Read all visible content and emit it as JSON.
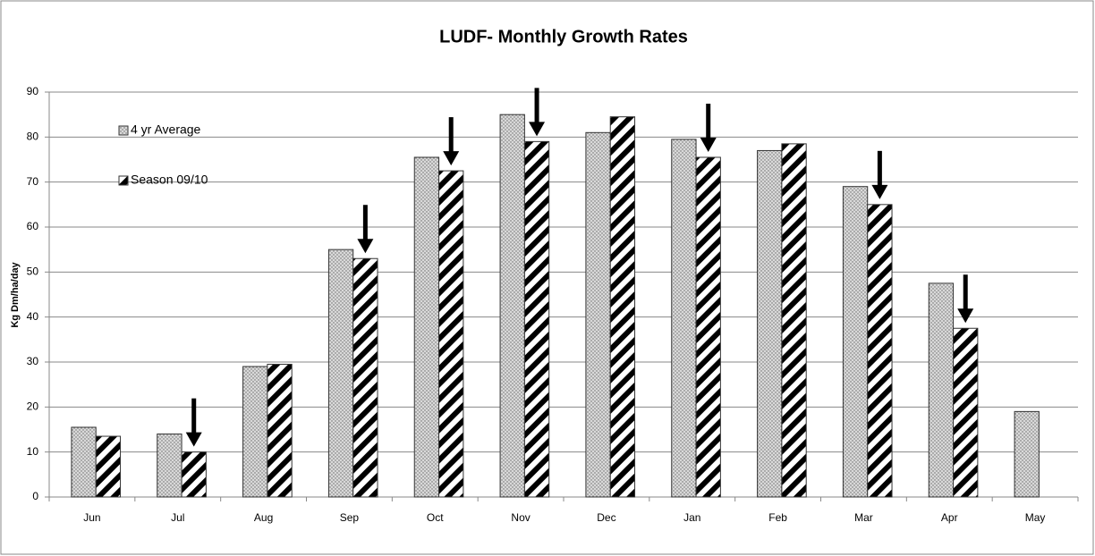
{
  "chart_data": {
    "type": "bar",
    "title": "LUDF- Monthly Growth Rates",
    "y_label": "Kg Dm/ha/day",
    "categories": [
      "Jun",
      "Jul",
      "Aug",
      "Sep",
      "Oct",
      "Nov",
      "Dec",
      "Jan",
      "Feb",
      "Mar",
      "Apr",
      "May"
    ],
    "series": [
      {
        "name": "4 yr Average",
        "color": "#d9d9d9",
        "values": [
          15.5,
          14,
          29,
          55,
          75.5,
          85,
          81,
          79.5,
          77,
          69,
          47.5,
          19
        ]
      },
      {
        "name": "Season 09/10",
        "color": "#000000",
        "values": [
          13.5,
          10,
          29.5,
          53,
          72.5,
          79,
          84.5,
          75.5,
          78.5,
          65,
          37.5,
          null
        ]
      }
    ],
    "ylim": [
      0,
      90
    ],
    "yticks": [
      0,
      10,
      20,
      30,
      40,
      50,
      60,
      70,
      80,
      90
    ],
    "grid": true
  }
}
